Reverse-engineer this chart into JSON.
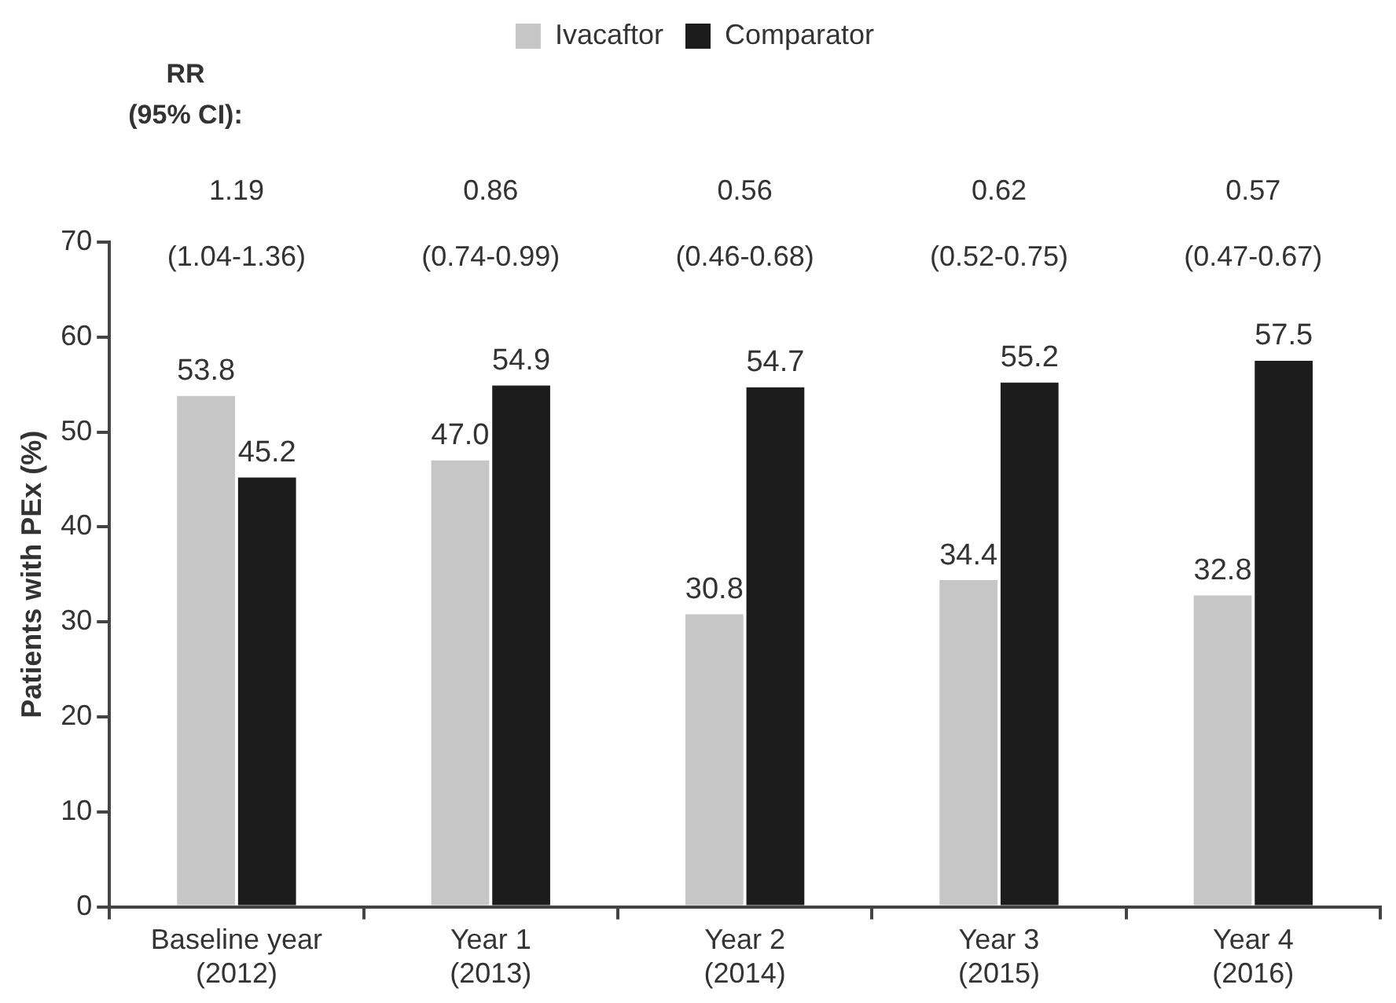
{
  "chart_data": {
    "type": "bar",
    "ylabel": "Patients with PEx (%)",
    "categories": [
      "Baseline year\n(2012)",
      "Year 1\n(2013)",
      "Year 2\n(2014)",
      "Year 3\n(2015)",
      "Year 4\n(2016)"
    ],
    "series": [
      {
        "name": "Ivacaftor",
        "color": "#c6c6c6",
        "values": [
          53.8,
          47.0,
          30.8,
          34.4,
          32.8
        ],
        "value_labels": [
          "53.8",
          "47.0",
          "30.8",
          "34.4",
          "32.8"
        ]
      },
      {
        "name": "Comparator",
        "color": "#1c1c1c",
        "values": [
          45.2,
          54.9,
          54.7,
          55.2,
          57.5
        ],
        "value_labels": [
          "45.2",
          "54.9",
          "54.7",
          "55.2",
          "57.5"
        ]
      }
    ],
    "ylim": [
      0,
      70
    ],
    "yticks": [
      0,
      10,
      20,
      30,
      40,
      50,
      60,
      70
    ],
    "grid": false,
    "legend": "top",
    "annotations": [
      "RR",
      "(95% CI):",
      "1.19",
      "(1.04-1.36)",
      "0.86",
      "(0.74-0.99)",
      "0.56",
      "(0.46-0.68)",
      "0.62",
      "(0.52-0.75)",
      "0.57",
      "(0.47-0.67)"
    ]
  }
}
